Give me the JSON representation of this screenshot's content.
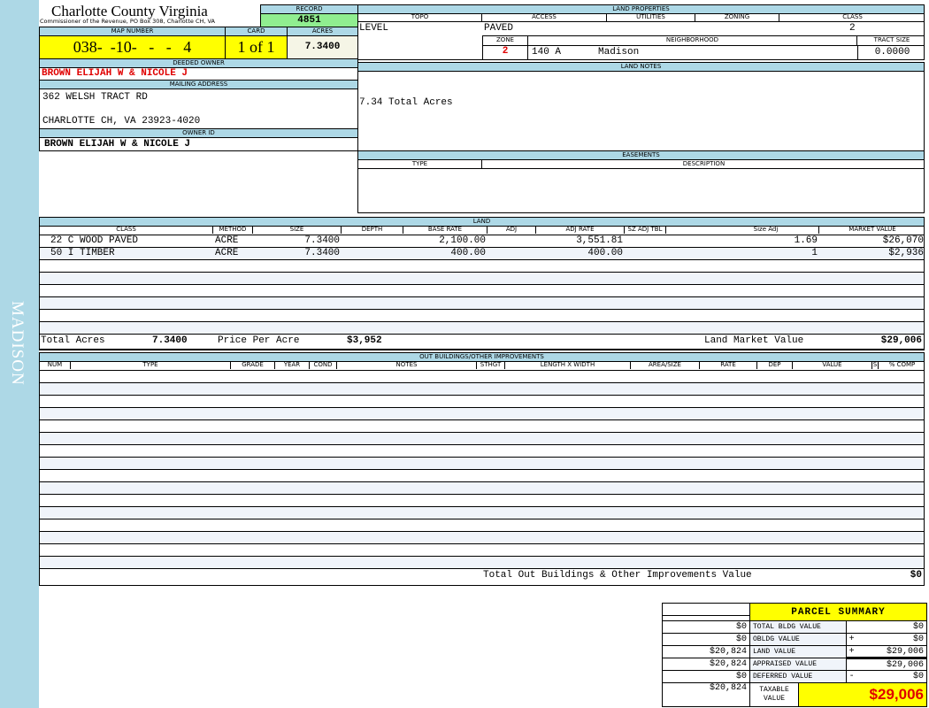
{
  "sidebar": {
    "label": "MADISON"
  },
  "header": {
    "county": "Charlotte County Virginia",
    "office": "Commissioner of the Revenue, PO Box 308, Charlotte CH, VA",
    "record_label": "RECORD",
    "record": "4851"
  },
  "parcel": {
    "map_label": "MAP NUMBER",
    "map_number": "038-  -10-   -   -   4",
    "card_label": "CARD",
    "card": "1 of 1",
    "acres_label": "ACRES",
    "acres": "7.3400"
  },
  "owner": {
    "deeded_label": "DEEDED OWNER",
    "deeded": "BROWN ELIJAH W & NICOLE J",
    "mailing_label": "MAILING ADDRESS",
    "address1": "362 WELSH TRACT RD",
    "address2": "CHARLOTTE CH, VA 23923-4020",
    "owner_id_label": "OWNER ID",
    "owner_id": "BROWN ELIJAH W & NICOLE J"
  },
  "land_properties": {
    "title": "LAND PROPERTIES",
    "topo_label": "TOPO",
    "access_label": "ACCESS",
    "utilities_label": "UTILITIES",
    "zoning_label": "ZONING",
    "class_label": "CLASS",
    "topo": "LEVEL",
    "access": "PAVED",
    "utilities": "",
    "zoning": "",
    "class": "2",
    "zone_label": "ZONE",
    "neighborhood_label": "NEIGHBORHOOD",
    "tract_label": "TRACT SIZE",
    "zone": "2",
    "neighborhood_code": "140 A",
    "neighborhood": "Madison",
    "tract_size": "0.0000"
  },
  "land_notes": {
    "title": "LAND NOTES",
    "text": "7.34 Total Acres"
  },
  "easements": {
    "title": "EASEMENTS",
    "type_label": "TYPE",
    "description_label": "DESCRIPTION"
  },
  "land": {
    "title": "LAND",
    "columns": [
      "CLASS",
      "METHOD",
      "SIZE",
      "DEPTH",
      "BASE RATE",
      "ADJ",
      "ADJ RATE",
      "SZ ADJ TBL",
      "",
      "Size Adj",
      "MARKET VALUE"
    ],
    "rows": [
      [
        "22 C WOOD PAVED",
        "ACRE",
        "7.3400",
        "",
        "2,100.00",
        "",
        "3,551.81",
        "",
        "",
        "1.69",
        "$26,070"
      ],
      [
        "50 I TIMBER",
        "ACRE",
        "7.3400",
        "",
        "400.00",
        "",
        "400.00",
        "",
        "",
        "1",
        "$2,936"
      ]
    ],
    "total_acres_label": "Total Acres",
    "total_acres": "7.3400",
    "ppa_label": "Price Per Acre",
    "ppa": "$3,952",
    "market_label": "Land Market Value",
    "market": "$29,006"
  },
  "outbuildings": {
    "title": "OUT BUILDINGS/OTHER IMPROVEMENTS",
    "columns": [
      "NUM",
      "TYPE",
      "GRADE",
      "YEAR",
      "COND",
      "NOTES",
      "STHGT",
      "LENGTH X WIDTH",
      "AREA/SIZE",
      "RATE",
      "DEP",
      "VALUE",
      "S",
      "% COMP"
    ],
    "total_label": "Total Out Buildings & Other Improvements Value",
    "total": "$0"
  },
  "summary": {
    "title": "PARCEL SUMMARY",
    "rows": [
      {
        "prior": "$0",
        "label": "TOTAL BLDG VALUE",
        "op": "",
        "value": "$0"
      },
      {
        "prior": "$0",
        "label": "OBLDG VALUE",
        "op": "+",
        "value": "$0"
      },
      {
        "prior": "$20,824",
        "label": "LAND VALUE",
        "op": "+",
        "value": "$29,006"
      },
      {
        "prior": "$20,824",
        "label": "APPRAISED VALUE",
        "op": "",
        "value": "$29,006"
      },
      {
        "prior": "$0",
        "label": "DEFERRED VALUE",
        "op": "-",
        "value": "$0"
      }
    ],
    "taxable_prior": "$20,824",
    "taxable_label": "TAXABLE VALUE",
    "taxable": "$29,006"
  },
  "colors": {
    "sidebar": "#add8e6",
    "header": "#add8e6",
    "highlight": "#ffff00",
    "record": "#90ee90",
    "owner_red": "#e00000"
  }
}
